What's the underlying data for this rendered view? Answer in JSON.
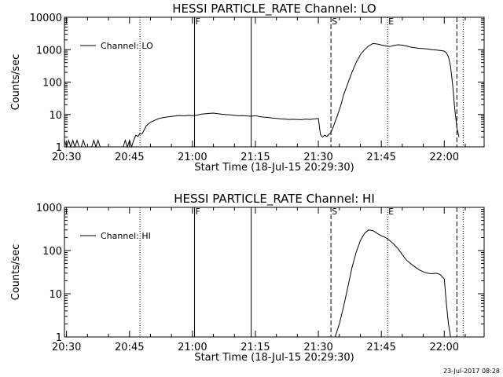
{
  "timestamp": "23-Jul-2017 08:28",
  "chart_data": [
    {
      "type": "line",
      "title": "HESSI PARTICLE_RATE Channel: LO",
      "xlabel": "Start Time (18-Jul-15 20:29:30)",
      "ylabel": "Counts/sec",
      "yscale": "log",
      "ylim": [
        1,
        10000
      ],
      "xlim": [
        "20:29:30",
        "22:09:30"
      ],
      "xticks": [
        "20:30",
        "20:45",
        "21:00",
        "21:15",
        "21:30",
        "21:45",
        "22:00"
      ],
      "yticks": [
        "1",
        "10",
        "100",
        "1000",
        "10000"
      ],
      "legend": {
        "label": "Channel: LO",
        "placement": "top-left"
      },
      "markers": [
        {
          "label": "",
          "time": "20:29:30",
          "style": "dotted"
        },
        {
          "label": "",
          "time": "20:47:30",
          "style": "dotted"
        },
        {
          "label": "F",
          "time": "21:00:30",
          "style": "solid"
        },
        {
          "label": "",
          "time": "21:14:00",
          "style": "solid"
        },
        {
          "label": "S",
          "time": "21:33:00",
          "style": "dashed"
        },
        {
          "label": "E",
          "time": "21:46:30",
          "style": "dotted"
        },
        {
          "label": "",
          "time": "22:03:00",
          "style": "dashed"
        },
        {
          "label": "",
          "time": "22:04:30",
          "style": "dotted"
        }
      ],
      "series": [
        {
          "name": "Channel: LO",
          "x": [
            "20:29:30",
            "20:30:00",
            "20:30:30",
            "20:31:00",
            "20:31:30",
            "20:32:00",
            "20:32:30",
            "20:33:00",
            "20:33:30",
            "20:34:00",
            "20:34:30",
            "20:35:00",
            "20:35:30",
            "20:36:00",
            "20:36:30",
            "20:37:00",
            "20:37:30",
            "20:38:00",
            "20:38:30",
            "20:39:00",
            "20:39:30",
            "20:40:00",
            "20:40:30",
            "20:41:00",
            "20:41:30",
            "20:42:00",
            "20:42:30",
            "20:43:00",
            "20:43:30",
            "20:44:00",
            "20:44:30",
            "20:45:00",
            "20:45:30",
            "20:46:00",
            "20:46:30",
            "20:47:00",
            "20:47:30",
            "20:48:00",
            "20:49:00",
            "20:50:00",
            "20:51:00",
            "20:52:00",
            "20:53:00",
            "20:54:00",
            "20:55:00",
            "20:56:00",
            "20:57:00",
            "20:58:00",
            "20:59:00",
            "21:00:00",
            "21:01:00",
            "21:02:00",
            "21:03:00",
            "21:04:00",
            "21:05:00",
            "21:06:00",
            "21:07:00",
            "21:08:00",
            "21:09:00",
            "21:10:00",
            "21:11:00",
            "21:12:00",
            "21:13:00",
            "21:14:00",
            "21:15:00",
            "21:16:00",
            "21:17:00",
            "21:18:00",
            "21:19:00",
            "21:20:00",
            "21:21:00",
            "21:22:00",
            "21:23:00",
            "21:24:00",
            "21:25:00",
            "21:26:00",
            "21:27:00",
            "21:28:00",
            "21:29:00",
            "21:30:00",
            "21:30:30",
            "21:31:00",
            "21:31:30",
            "21:32:00",
            "21:32:30",
            "21:33:00",
            "21:33:30",
            "21:34:00",
            "21:34:30",
            "21:35:00",
            "21:35:30",
            "21:36:00",
            "21:37:00",
            "21:38:00",
            "21:39:00",
            "21:40:00",
            "21:41:00",
            "21:42:00",
            "21:43:00",
            "21:44:00",
            "21:45:00",
            "21:46:00",
            "21:47:00",
            "21:48:00",
            "21:49:00",
            "21:50:00",
            "21:51:00",
            "21:52:00",
            "21:53:00",
            "21:54:00",
            "21:55:00",
            "21:56:00",
            "21:57:00",
            "21:58:00",
            "21:59:00",
            "22:00:00",
            "22:00:30",
            "22:01:00",
            "22:01:30",
            "22:02:00",
            "22:02:30",
            "22:03:00",
            "22:03:30"
          ],
          "y": [
            1.6,
            1,
            1.6,
            1,
            1.6,
            1,
            1.6,
            1,
            1,
            1.6,
            1,
            1,
            1,
            1,
            1.6,
            1,
            1.6,
            1,
            1,
            1,
            1,
            1,
            1,
            1,
            1,
            1,
            1,
            1,
            1,
            1.6,
            1,
            1.6,
            1,
            1.6,
            2.3,
            2.1,
            2.6,
            2.5,
            4.5,
            5.8,
            6.6,
            7.5,
            8.0,
            8.4,
            8.7,
            9.0,
            9.3,
            9.0,
            9.4,
            9.2,
            9.5,
            10.2,
            10.5,
            10.8,
            11.0,
            10.6,
            10.2,
            9.9,
            9.7,
            9.4,
            9.1,
            9.3,
            9.0,
            8.8,
            9.2,
            8.6,
            8.3,
            8.1,
            7.8,
            7.6,
            7.3,
            7.2,
            7.0,
            7.1,
            7.0,
            6.9,
            7.2,
            7.0,
            7.3,
            7.5,
            2.4,
            2.0,
            2.3,
            2.1,
            2.4,
            2.8,
            4.0,
            6.0,
            9.0,
            14,
            22,
            40,
            90,
            200,
            400,
            700,
            1000,
            1300,
            1550,
            1500,
            1400,
            1300,
            1250,
            1350,
            1420,
            1380,
            1300,
            1200,
            1150,
            1100,
            1080,
            1050,
            1000,
            980,
            950,
            900,
            800,
            600,
            300,
            80,
            15,
            4,
            2
          ]
        }
      ]
    },
    {
      "type": "line",
      "title": "HESSI PARTICLE_RATE Channel: HI",
      "xlabel": "Start Time (18-Jul-15 20:29:30)",
      "ylabel": "Counts/sec",
      "yscale": "log",
      "ylim": [
        1,
        1000
      ],
      "xlim": [
        "20:29:30",
        "22:09:30"
      ],
      "xticks": [
        "20:30",
        "20:45",
        "21:00",
        "21:15",
        "21:30",
        "21:45",
        "22:00"
      ],
      "yticks": [
        "1",
        "10",
        "100",
        "1000"
      ],
      "legend": {
        "label": "Channel: HI",
        "placement": "top-left"
      },
      "markers": [
        {
          "label": "",
          "time": "20:29:30",
          "style": "dotted"
        },
        {
          "label": "",
          "time": "20:47:30",
          "style": "dotted"
        },
        {
          "label": "F",
          "time": "21:00:30",
          "style": "solid"
        },
        {
          "label": "",
          "time": "21:14:00",
          "style": "solid"
        },
        {
          "label": "S",
          "time": "21:33:00",
          "style": "dashed"
        },
        {
          "label": "E",
          "time": "21:46:30",
          "style": "dotted"
        },
        {
          "label": "",
          "time": "22:03:00",
          "style": "dashed"
        },
        {
          "label": "",
          "time": "22:04:30",
          "style": "dotted"
        }
      ],
      "series": [
        {
          "name": "Channel: HI",
          "x": [
            "21:34:00",
            "21:35:00",
            "21:36:00",
            "21:37:00",
            "21:38:00",
            "21:39:00",
            "21:40:00",
            "21:41:00",
            "21:42:00",
            "21:43:00",
            "21:44:00",
            "21:45:00",
            "21:46:00",
            "21:47:00",
            "21:48:00",
            "21:49:00",
            "21:50:00",
            "21:51:00",
            "21:52:00",
            "21:53:00",
            "21:54:00",
            "21:55:00",
            "21:56:00",
            "21:57:00",
            "21:58:00",
            "21:59:00",
            "22:00:00",
            "22:00:30",
            "22:01:00",
            "22:01:30"
          ],
          "y": [
            1,
            2,
            5,
            14,
            40,
            90,
            170,
            250,
            300,
            290,
            250,
            220,
            200,
            170,
            140,
            110,
            80,
            60,
            50,
            42,
            36,
            32,
            30,
            29,
            30,
            28,
            22,
            6,
            2,
            1
          ]
        }
      ]
    }
  ]
}
